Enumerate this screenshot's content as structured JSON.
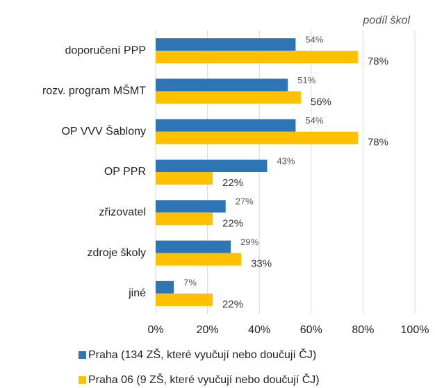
{
  "chart_data": {
    "type": "hbar",
    "title": "podíl škol",
    "categories": [
      "doporučení PPP",
      "rozv. program MŠMT",
      "OP VVV Šablony",
      "OP PPR",
      "zřizovatel",
      "zdroje školy",
      "jiné"
    ],
    "series": [
      {
        "name": "Praha (134 ZŠ, které vyučují nebo doučují ČJ)",
        "color": "#2e75b6",
        "values": [
          54,
          51,
          54,
          43,
          27,
          29,
          7
        ],
        "value_labels": [
          "54%",
          "51%",
          "54%",
          "43%",
          "27%",
          "29%",
          "7%"
        ]
      },
      {
        "name": "Praha 06 (9 ZŠ, které vyučují nebo doučují ČJ)",
        "color": "#ffc000",
        "values": [
          78,
          56,
          78,
          22,
          22,
          33,
          22
        ],
        "value_labels": [
          "78%",
          "56%",
          "78%",
          "22%",
          "22%",
          "33%",
          "22%"
        ]
      }
    ],
    "xlim": [
      0,
      100
    ],
    "xticks": [
      {
        "value": 0,
        "label": "0%"
      },
      {
        "value": 20,
        "label": "20%"
      },
      {
        "value": 40,
        "label": "40%"
      },
      {
        "value": 60,
        "label": "60%"
      },
      {
        "value": 80,
        "label": "80%"
      },
      {
        "value": 100,
        "label": "100%"
      }
    ],
    "grid": true
  }
}
